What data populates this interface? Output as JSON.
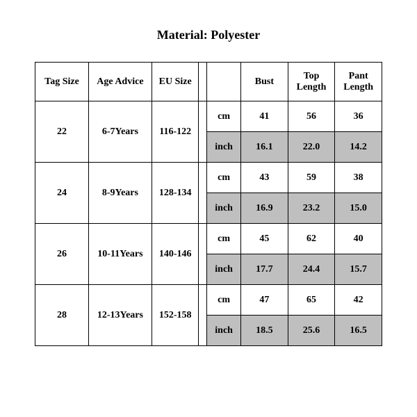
{
  "title": "Material: Polyester",
  "table": {
    "columns": {
      "tag_size": "Tag Size",
      "age_advice": "Age Advice",
      "eu_size": "EU Size",
      "bust": "Bust",
      "top_length": "Top Length",
      "pant_length": "Pant Length"
    },
    "unit_cm": "cm",
    "unit_inch": "inch",
    "rows": [
      {
        "tag": "22",
        "age": "6-7Years",
        "eu": "116-122",
        "cm": {
          "bust": "41",
          "top": "56",
          "pant": "36"
        },
        "inch": {
          "bust": "16.1",
          "top": "22.0",
          "pant": "14.2"
        }
      },
      {
        "tag": "24",
        "age": "8-9Years",
        "eu": "128-134",
        "cm": {
          "bust": "43",
          "top": "59",
          "pant": "38"
        },
        "inch": {
          "bust": "16.9",
          "top": "23.2",
          "pant": "15.0"
        }
      },
      {
        "tag": "26",
        "age": "10-11Years",
        "eu": "140-146",
        "cm": {
          "bust": "45",
          "top": "62",
          "pant": "40"
        },
        "inch": {
          "bust": "17.7",
          "top": "24.4",
          "pant": "15.7"
        }
      },
      {
        "tag": "28",
        "age": "12-13Years",
        "eu": "152-158",
        "cm": {
          "bust": "47",
          "top": "65",
          "pant": "42"
        },
        "inch": {
          "bust": "18.5",
          "top": "25.6",
          "pant": "16.5"
        }
      }
    ],
    "colors": {
      "shade": "#bfbfbf",
      "border": "#000000",
      "bg": "#ffffff",
      "text": "#000000"
    }
  }
}
